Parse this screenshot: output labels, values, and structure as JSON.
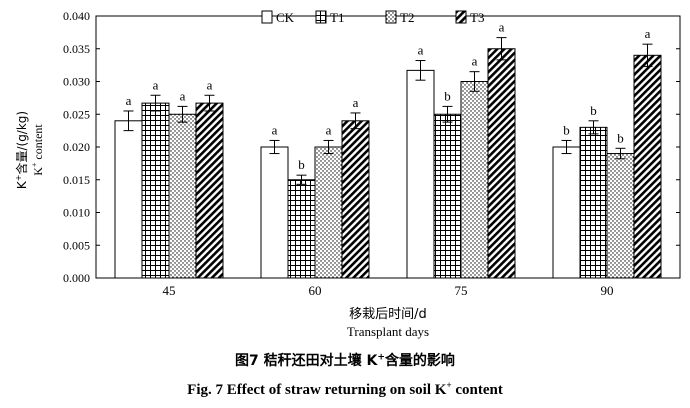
{
  "chart_data": {
    "type": "bar",
    "categories": [
      "45",
      "60",
      "75",
      "90"
    ],
    "series": [
      {
        "name": "CK",
        "values": [
          0.024,
          0.02,
          0.0317,
          0.02
        ],
        "errors": [
          0.0015,
          0.001,
          0.0015,
          0.001
        ],
        "letters": [
          "a",
          "a",
          "a",
          "b"
        ]
      },
      {
        "name": "T1",
        "values": [
          0.0267,
          0.015,
          0.025,
          0.023
        ],
        "errors": [
          0.0012,
          0.0007,
          0.0012,
          0.001
        ],
        "letters": [
          "a",
          "b",
          "b",
          "b"
        ]
      },
      {
        "name": "T2",
        "values": [
          0.025,
          0.02,
          0.03,
          0.019
        ],
        "errors": [
          0.0012,
          0.001,
          0.0015,
          0.0008
        ],
        "letters": [
          "a",
          "a",
          "a",
          "b"
        ]
      },
      {
        "name": "T3",
        "values": [
          0.0267,
          0.024,
          0.035,
          0.034
        ],
        "errors": [
          0.0012,
          0.0012,
          0.0017,
          0.0017
        ],
        "letters": [
          "a",
          "a",
          "a",
          "a"
        ]
      }
    ],
    "ylim": [
      0,
      0.04
    ],
    "yticks": [
      "0.000",
      "0.005",
      "0.010",
      "0.015",
      "0.020",
      "0.025",
      "0.030",
      "0.035",
      "0.040"
    ],
    "xlabel_cn": "移栽后时间/d",
    "xlabel_en": "Transplant days",
    "ylabel_cn_pre": "K",
    "ylabel_cn_sup": "+",
    "ylabel_cn_post": "含量/(g/kg)",
    "ylabel_en_pre": "K",
    "ylabel_en_sup": "+",
    "ylabel_en_post": " content",
    "legend_position": "top"
  },
  "caption": {
    "cn_pre": "图7   秸秆还田对土壤 K",
    "cn_sup": "+",
    "cn_post": "含量的影响",
    "en_pre": "Fig. 7    Effect of straw returning on soil K",
    "en_sup": "+",
    "en_post": " content"
  }
}
